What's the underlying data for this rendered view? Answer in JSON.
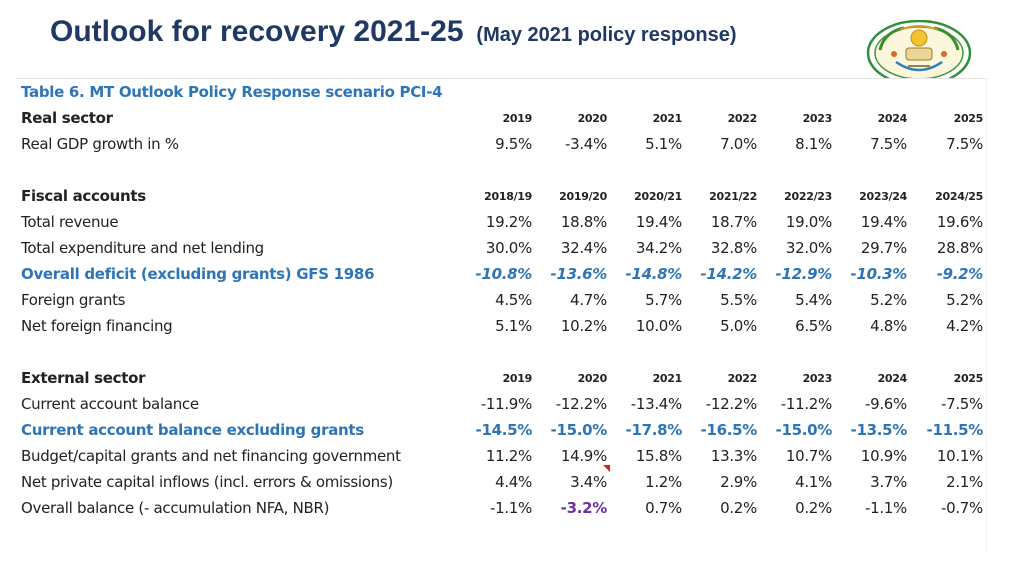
{
  "slide": {
    "title": "Outlook for recovery 2021-25",
    "subtitle": "(May 2021 policy response)"
  },
  "seal": {
    "icon": "national-coat-of-arms"
  },
  "table": {
    "title": "Table 6. MT Outlook Policy Response scenario PCI-4",
    "real_sector": {
      "header": "Real sector",
      "columns": [
        "2019",
        "2020",
        "2021",
        "2022",
        "2023",
        "2024",
        "2025"
      ],
      "rows": [
        {
          "label": "Real GDP growth in %",
          "values": [
            "9.5%",
            "-3.4%",
            "5.1%",
            "7.0%",
            "8.1%",
            "7.5%",
            "7.5%"
          ]
        }
      ]
    },
    "fiscal": {
      "header": "Fiscal accounts",
      "columns": [
        "2018/19",
        "2019/20",
        "2020/21",
        "2021/22",
        "2022/23",
        "2023/24",
        "2024/25"
      ],
      "rows": [
        {
          "label": "Total revenue",
          "values": [
            "19.2%",
            "18.8%",
            "19.4%",
            "18.7%",
            "19.0%",
            "19.4%",
            "19.6%"
          ]
        },
        {
          "label": "Total expenditure and net lending",
          "values": [
            "30.0%",
            "32.4%",
            "34.2%",
            "32.8%",
            "32.0%",
            "29.7%",
            "28.8%"
          ]
        },
        {
          "label": "Overall deficit (excluding grants) GFS 1986",
          "values": [
            "-10.8%",
            "-13.6%",
            "-14.8%",
            "-14.2%",
            "-12.9%",
            "-10.3%",
            "-9.2%"
          ]
        },
        {
          "label": "Foreign grants",
          "values": [
            "4.5%",
            "4.7%",
            "5.7%",
            "5.5%",
            "5.4%",
            "5.2%",
            "5.2%"
          ]
        },
        {
          "label": "Net foreign financing",
          "values": [
            "5.1%",
            "10.2%",
            "10.0%",
            "5.0%",
            "6.5%",
            "4.8%",
            "4.2%"
          ]
        }
      ]
    },
    "external": {
      "header": "External sector",
      "columns": [
        "2019",
        "2020",
        "2021",
        "2022",
        "2023",
        "2024",
        "2025"
      ],
      "rows": [
        {
          "label": "Current account balance",
          "values": [
            "-11.9%",
            "-12.2%",
            "-13.4%",
            "-12.2%",
            "-11.2%",
            "-9.6%",
            "-7.5%"
          ]
        },
        {
          "label": "Current account balance excluding grants",
          "values": [
            "-14.5%",
            "-15.0%",
            "-17.8%",
            "-16.5%",
            "-15.0%",
            "-13.5%",
            "-11.5%"
          ]
        },
        {
          "label": "Budget/capital grants and net financing government",
          "values": [
            "11.2%",
            "14.9%",
            "15.8%",
            "13.3%",
            "10.7%",
            "10.9%",
            "10.1%"
          ]
        },
        {
          "label": "Net private capital inflows (incl. errors & omissions)",
          "values": [
            "4.4%",
            "3.4%",
            "1.2%",
            "2.9%",
            "4.1%",
            "3.7%",
            "2.1%"
          ]
        },
        {
          "label": "Overall balance (- accumulation NFA, NBR)",
          "values": [
            "-1.1%",
            "-3.2%",
            "0.7%",
            "0.2%",
            "0.2%",
            "-1.1%",
            "-0.7%"
          ]
        }
      ]
    }
  },
  "colors": {
    "title": "#1f3864",
    "highlight_blue": "#2e75b6",
    "highlight_purple": "#7030a0",
    "comment_flag": "#e02020"
  }
}
